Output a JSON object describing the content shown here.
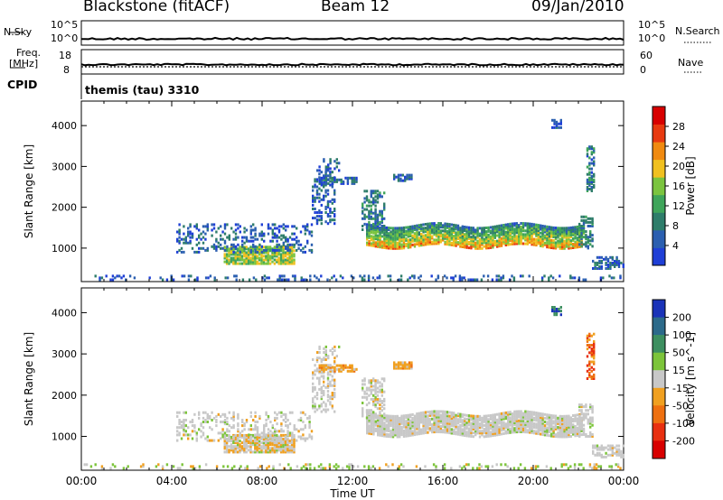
{
  "header": {
    "station": "Blackstone (fitACF)",
    "beam": "Beam 12",
    "date": "09/Jan/2010"
  },
  "noise_panel": {
    "left_label": "N.Sky",
    "right_label": "N.Search",
    "right_ticks": [
      "10^5",
      "10^0"
    ],
    "left_ticks": [
      "10^5",
      "10^0"
    ]
  },
  "freq_panel": {
    "left_label_1": "Freq.",
    "left_label_2": "[MHz]",
    "left_label_3": "CPID",
    "left_ticks": [
      "18",
      "8"
    ],
    "right_label": "Nave",
    "right_ticks": [
      "60",
      "0"
    ]
  },
  "cpid_text": "themis (tau) 3310",
  "colors": {
    "power_scale": [
      "#1f3fd6",
      "#2b5fb0",
      "#2e7d6a",
      "#3fa55a",
      "#7bc43f",
      "#f0c020",
      "#f08a10",
      "#e83a10",
      "#d80000"
    ],
    "velocity_scale": [
      "#1a33b8",
      "#2c6a8a",
      "#3d8f60",
      "#7cc43a",
      "#c8c8c8",
      "#f0a020",
      "#ee7010",
      "#e83010",
      "#d80000"
    ]
  },
  "chart_data": [
    {
      "type": "heatmap",
      "title": "",
      "xlabel": "Time UT",
      "ylabel": "Slant Range [km]",
      "x_ticks": [
        "00:00",
        "04:00",
        "08:00",
        "12:00",
        "16:00",
        "20:00",
        "00:00"
      ],
      "xlim_hours": [
        0,
        24
      ],
      "y_ticks": [
        1000,
        2000,
        3000,
        4000
      ],
      "ylim": [
        180,
        4600
      ],
      "colorbar_label": "Power [dB]",
      "colorbar_ticks": [
        4,
        8,
        12,
        16,
        20,
        24,
        28
      ],
      "colorbar_range": [
        0,
        32
      ]
    },
    {
      "type": "heatmap",
      "title": "",
      "xlabel": "Time UT",
      "ylabel": "Slant Range [km]",
      "x_ticks": [
        "00:00",
        "04:00",
        "08:00",
        "12:00",
        "16:00",
        "20:00",
        "00:00"
      ],
      "xlim_hours": [
        0,
        24
      ],
      "y_ticks": [
        1000,
        2000,
        3000,
        4000
      ],
      "ylim": [
        180,
        4600
      ],
      "colorbar_label": "Velocity [m s^-1]",
      "colorbar_ticks": [
        200,
        100,
        50,
        15,
        -15,
        -50,
        -100,
        -200
      ]
    }
  ],
  "scatter_regions": [
    {
      "name": "ground",
      "t": [
        0.1,
        23.9
      ],
      "r": [
        180,
        330
      ],
      "density": 0.22,
      "pw": 5,
      "vel": "low"
    },
    {
      "name": "morning_blob",
      "t": [
        6.3,
        9.4
      ],
      "r": [
        620,
        1050
      ],
      "density": 0.85,
      "pw": 16,
      "vel": "gray_orange"
    },
    {
      "name": "morning_edge",
      "t": [
        4.2,
        10.2
      ],
      "r": [
        900,
        1600
      ],
      "density": 0.28,
      "pw": 5,
      "vel": "gray"
    },
    {
      "name": "noon_patch_a",
      "t": [
        10.2,
        11.2
      ],
      "r": [
        1600,
        2900
      ],
      "density": 0.35,
      "pw": 5,
      "vel": "gray"
    },
    {
      "name": "noon_band",
      "t": [
        10.5,
        12.2
      ],
      "r": [
        2580,
        2720
      ],
      "density": 0.7,
      "pw": 6,
      "vel": "orange"
    },
    {
      "name": "noon_upper",
      "t": [
        10.4,
        11.4
      ],
      "r": [
        2900,
        3200
      ],
      "density": 0.3,
      "pw": 5,
      "vel": "gray"
    },
    {
      "name": "main_band",
      "t": [
        12.6,
        22.2
      ],
      "r": [
        1050,
        1550
      ],
      "density": 0.9,
      "pw": 22,
      "vel": "gray"
    },
    {
      "name": "main_rise",
      "t": [
        12.4,
        13.4
      ],
      "r": [
        1450,
        2400
      ],
      "density": 0.45,
      "pw": 8,
      "vel": "gray"
    },
    {
      "name": "evening_end",
      "t": [
        22.0,
        22.6
      ],
      "r": [
        1000,
        1800
      ],
      "density": 0.5,
      "pw": 10,
      "vel": "gray"
    },
    {
      "name": "late_spike",
      "t": [
        22.35,
        22.7
      ],
      "r": [
        2400,
        3500
      ],
      "density": 0.55,
      "pw": 8,
      "vel": "orange_red"
    },
    {
      "name": "late_low",
      "t": [
        22.6,
        24.0
      ],
      "r": [
        500,
        800
      ],
      "density": 0.5,
      "pw": 6,
      "vel": "gray"
    },
    {
      "name": "upper_dots",
      "t": [
        20.8,
        21.2
      ],
      "r": [
        3950,
        4150
      ],
      "density": 0.6,
      "pw": 4,
      "vel": "green"
    },
    {
      "name": "mid_dots",
      "t": [
        13.8,
        14.6
      ],
      "r": [
        2650,
        2800
      ],
      "density": 0.7,
      "pw": 5,
      "vel": "orange"
    }
  ]
}
